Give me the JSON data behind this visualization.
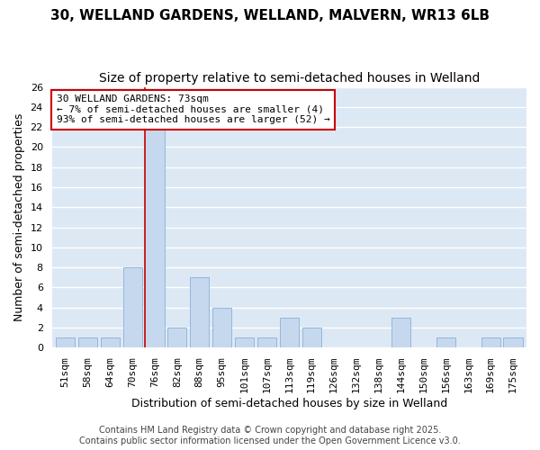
{
  "title_line1": "30, WELLAND GARDENS, WELLAND, MALVERN, WR13 6LB",
  "title_line2": "Size of property relative to semi-detached houses in Welland",
  "categories": [
    "51sqm",
    "58sqm",
    "64sqm",
    "70sqm",
    "76sqm",
    "82sqm",
    "88sqm",
    "95sqm",
    "101sqm",
    "107sqm",
    "113sqm",
    "119sqm",
    "126sqm",
    "132sqm",
    "138sqm",
    "144sqm",
    "150sqm",
    "156sqm",
    "163sqm",
    "169sqm",
    "175sqm"
  ],
  "values": [
    1,
    1,
    1,
    8,
    22,
    2,
    7,
    4,
    1,
    1,
    3,
    2,
    0,
    0,
    0,
    3,
    0,
    1,
    0,
    1,
    1
  ],
  "bar_color": "#c5d8ee",
  "bar_edge_color": "#93b8d8",
  "background_color": "#dde8f5",
  "grid_color": "#ffffff",
  "ylabel": "Number of semi-detached properties",
  "xlabel": "Distribution of semi-detached houses by size in Welland",
  "ylim": [
    0,
    26
  ],
  "yticks": [
    0,
    2,
    4,
    6,
    8,
    10,
    12,
    14,
    16,
    18,
    20,
    22,
    24,
    26
  ],
  "red_line_x": 3.55,
  "annotation_text": "30 WELLAND GARDENS: 73sqm\n← 7% of semi-detached houses are smaller (4)\n93% of semi-detached houses are larger (52) →",
  "annotation_box_color": "#ffffff",
  "annotation_box_edge": "#cc0000",
  "footer_line1": "Contains HM Land Registry data © Crown copyright and database right 2025.",
  "footer_line2": "Contains public sector information licensed under the Open Government Licence v3.0.",
  "title_fontsize": 11,
  "subtitle_fontsize": 10,
  "axis_label_fontsize": 9,
  "tick_fontsize": 8,
  "annotation_fontsize": 8,
  "footer_fontsize": 7
}
